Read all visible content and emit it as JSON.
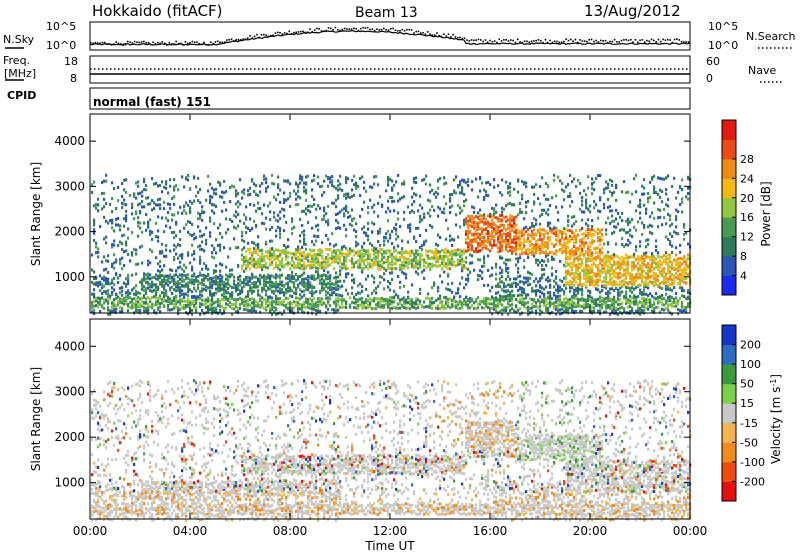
{
  "header": {
    "station": "Hokkaido (fitACF)",
    "beam": "Beam 13",
    "date": "13/Aug/2012"
  },
  "top_panels": {
    "nsky_label": "N.Sky",
    "nsearch_label": "N.Search",
    "noise_ticks": [
      "10^5",
      "10^0"
    ],
    "freq_label": "Freq.",
    "freq_unit": "[MHz]",
    "freq_ticks": [
      "18",
      "8"
    ],
    "nave_label": "Nave",
    "nave_ticks": [
      "60",
      "0"
    ],
    "cpid_label": "CPID",
    "cpid_value": "normal (fast) 151"
  },
  "time_axis": {
    "label": "Time UT",
    "ticks": [
      "00:00",
      "04:00",
      "08:00",
      "12:00",
      "16:00",
      "20:00",
      "00:00"
    ]
  },
  "colors": {
    "power_scale": [
      "#1b2cf0",
      "#2a57b5",
      "#2f7c5a",
      "#4a9a55",
      "#8fc83c",
      "#f5b814",
      "#f08a14",
      "#eb4b14",
      "#e31a10"
    ],
    "velocity_scale": [
      "#e41010",
      "#f04a10",
      "#f28a1e",
      "#f5b450",
      "#c8c8c8",
      "#7cd04c",
      "#3c9a3a",
      "#2e6cc0",
      "#1836c8"
    ]
  },
  "chart_data": [
    {
      "type": "heatmap",
      "name": "power",
      "ylabel": "Slant Range [km]",
      "xlabel": "",
      "y_ticks": [
        "1000",
        "2000",
        "3000",
        "4000"
      ],
      "ylim": [
        200,
        4600
      ],
      "colorbar_label": "Power [dB]",
      "colorbar_ticks": [
        "4",
        "8",
        "12",
        "16",
        "20",
        "24",
        "28"
      ],
      "colorbar_range": [
        0,
        32
      ],
      "bands": [
        {
          "t": [
            0,
            24
          ],
          "r": [
            350,
            550
          ],
          "level": 13
        },
        {
          "t": [
            2,
            10
          ],
          "r": [
            700,
            1100
          ],
          "level": 10
        },
        {
          "t": [
            6,
            15
          ],
          "r": [
            1200,
            1650
          ],
          "level": 16
        },
        {
          "t": [
            15,
            17
          ],
          "r": [
            1600,
            2400
          ],
          "level": 25
        },
        {
          "t": [
            17,
            20.5
          ],
          "r": [
            1500,
            2100
          ],
          "level": 22
        },
        {
          "t": [
            19,
            24
          ],
          "r": [
            800,
            1500
          ],
          "level": 20
        }
      ]
    },
    {
      "type": "heatmap",
      "name": "velocity",
      "ylabel": "Slant Range [km]",
      "xlabel": "Time UT",
      "y_ticks": [
        "1000",
        "2000",
        "3000",
        "4000"
      ],
      "ylim": [
        200,
        4600
      ],
      "colorbar_label": "Velocity [m s^-1]",
      "colorbar_ticks": [
        "-200",
        "-100",
        "-50",
        "-15",
        "15",
        "50",
        "100",
        "200"
      ],
      "colorbar_range": [
        -250,
        250
      ]
    }
  ]
}
